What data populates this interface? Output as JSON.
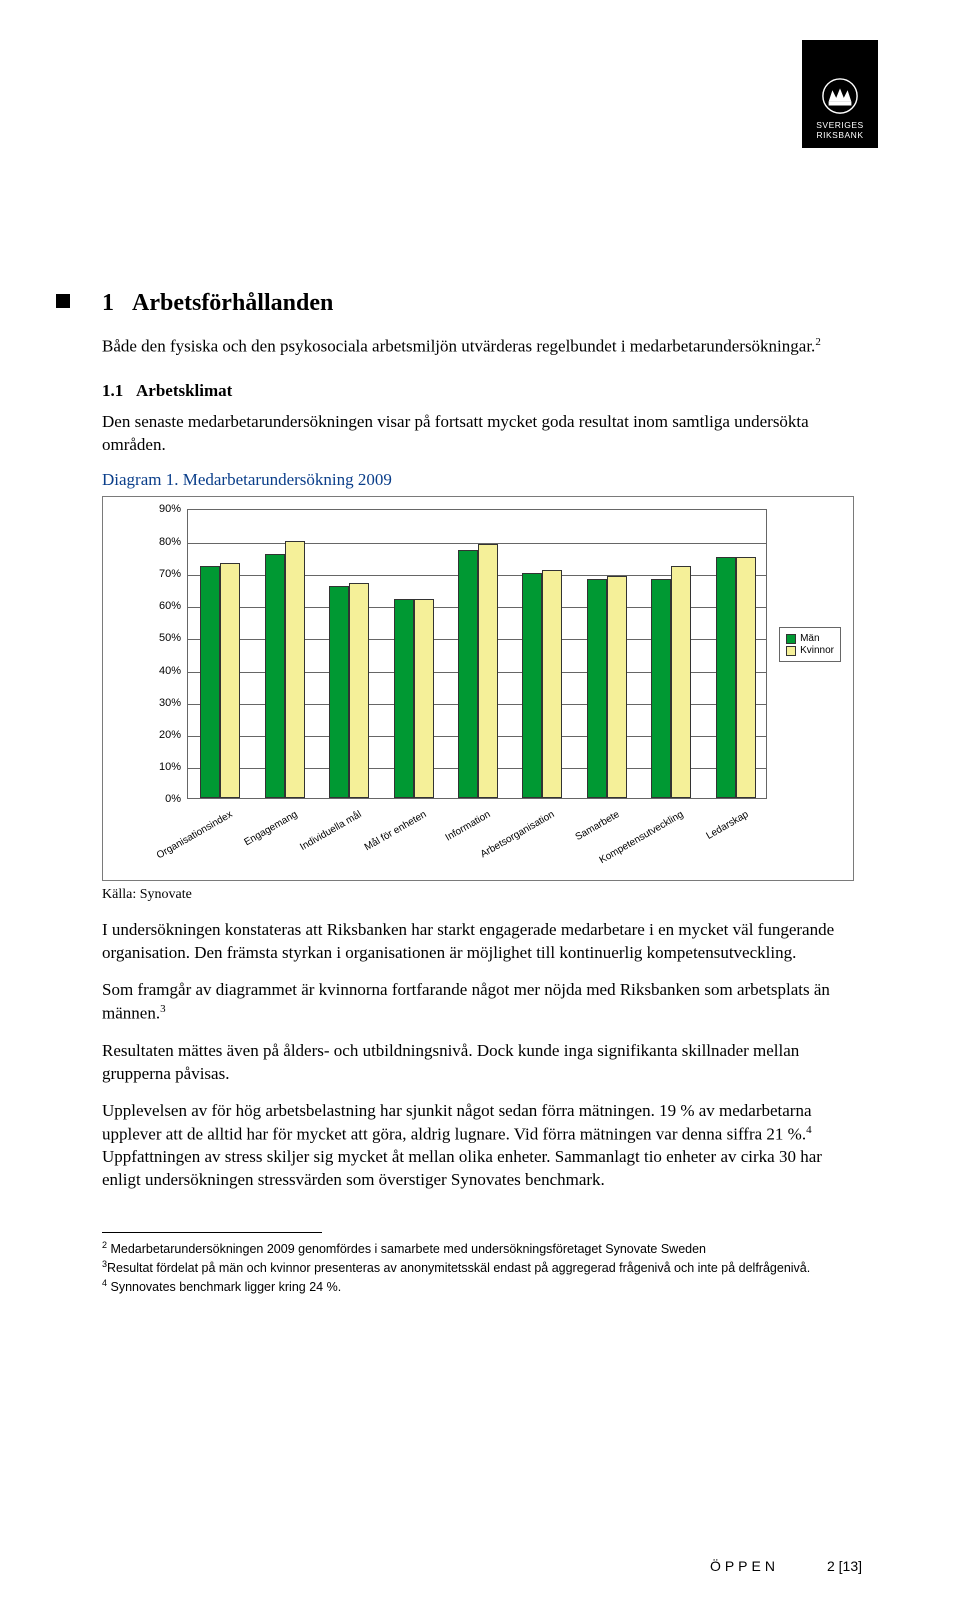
{
  "logo": {
    "line1": "SVERIGES",
    "line2": "RIKSBANK"
  },
  "heading": {
    "num": "1",
    "title": "Arbetsförhållanden"
  },
  "intro": "Både den fysiska och den psykosociala arbetsmiljön utvärderas regelbundet i medarbetarundersökningar.",
  "intro_fn": "2",
  "sub": {
    "num": "1.1",
    "title": "Arbetsklimat"
  },
  "sub_intro": "Den senaste medarbetarundersökningen visar på fortsatt mycket goda resultat inom samtliga undersökta områden.",
  "diagram_title": "Diagram 1. Medarbetarundersökning 2009",
  "chart": {
    "type": "bar",
    "ymax": 90,
    "ystep": 10,
    "bar_colors": {
      "men": "#009933",
      "women": "#f5f099"
    },
    "background_color": "#ffffff",
    "grid_color": "#666666",
    "categories": [
      "Organisationsindex",
      "Engagemang",
      "Individuella mål",
      "Mål för enheten",
      "Information",
      "Arbetsorganisation",
      "Samarbete",
      "Kompetensutveckling",
      "Ledarskap"
    ],
    "series": {
      "men": [
        72,
        76,
        66,
        62,
        77,
        70,
        68,
        68,
        75
      ],
      "women": [
        73,
        80,
        67,
        62,
        79,
        71,
        69,
        72,
        75
      ]
    },
    "legend": {
      "men": "Män",
      "women": "Kvinnor"
    }
  },
  "source": "Källa: Synovate",
  "body": [
    "I undersökningen konstateras att Riksbanken har starkt engagerade medarbetare i en mycket väl fungerande organisation. Den främsta styrkan i organisationen är möjlighet till kontinuerlig kompetensutveckling.",
    "Som framgår av diagrammet är kvinnorna fortfarande något mer nöjda med Riksbanken som arbetsplats än männen.",
    "Resultaten mättes även på ålders- och utbildningsnivå. Dock kunde inga signifikanta skillnader mellan grupperna påvisas.",
    "Upplevelsen av för hög arbetsbelastning har sjunkit något sedan förra mätningen. 19 % av medarbetarna upplever att de alltid har för mycket att göra, aldrig lugnare. Vid förra mätningen var denna siffra 21 %.",
    " Uppfattningen av stress skiljer sig mycket åt mellan olika enheter. Sammanlagt tio enheter av cirka 30 har enligt undersökningen stressvärden som överstiger Synovates benchmark."
  ],
  "body_fn": {
    "p2": "3",
    "p4": "4"
  },
  "footnotes": [
    {
      "n": "2",
      "t": " Medarbetarundersökningen 2009 genomfördes i samarbete med undersökningsföretaget Synovate Sweden"
    },
    {
      "n": "3",
      "t": "Resultat fördelat på män och kvinnor presenteras av anonymitetsskäl endast på aggregerad frågenivå och inte på delfrågenivå."
    },
    {
      "n": "4",
      "t": " Synnovates benchmark ligger kring 24 %."
    }
  ],
  "footer": {
    "label": "ÖPPEN",
    "page": "2 [13]"
  }
}
